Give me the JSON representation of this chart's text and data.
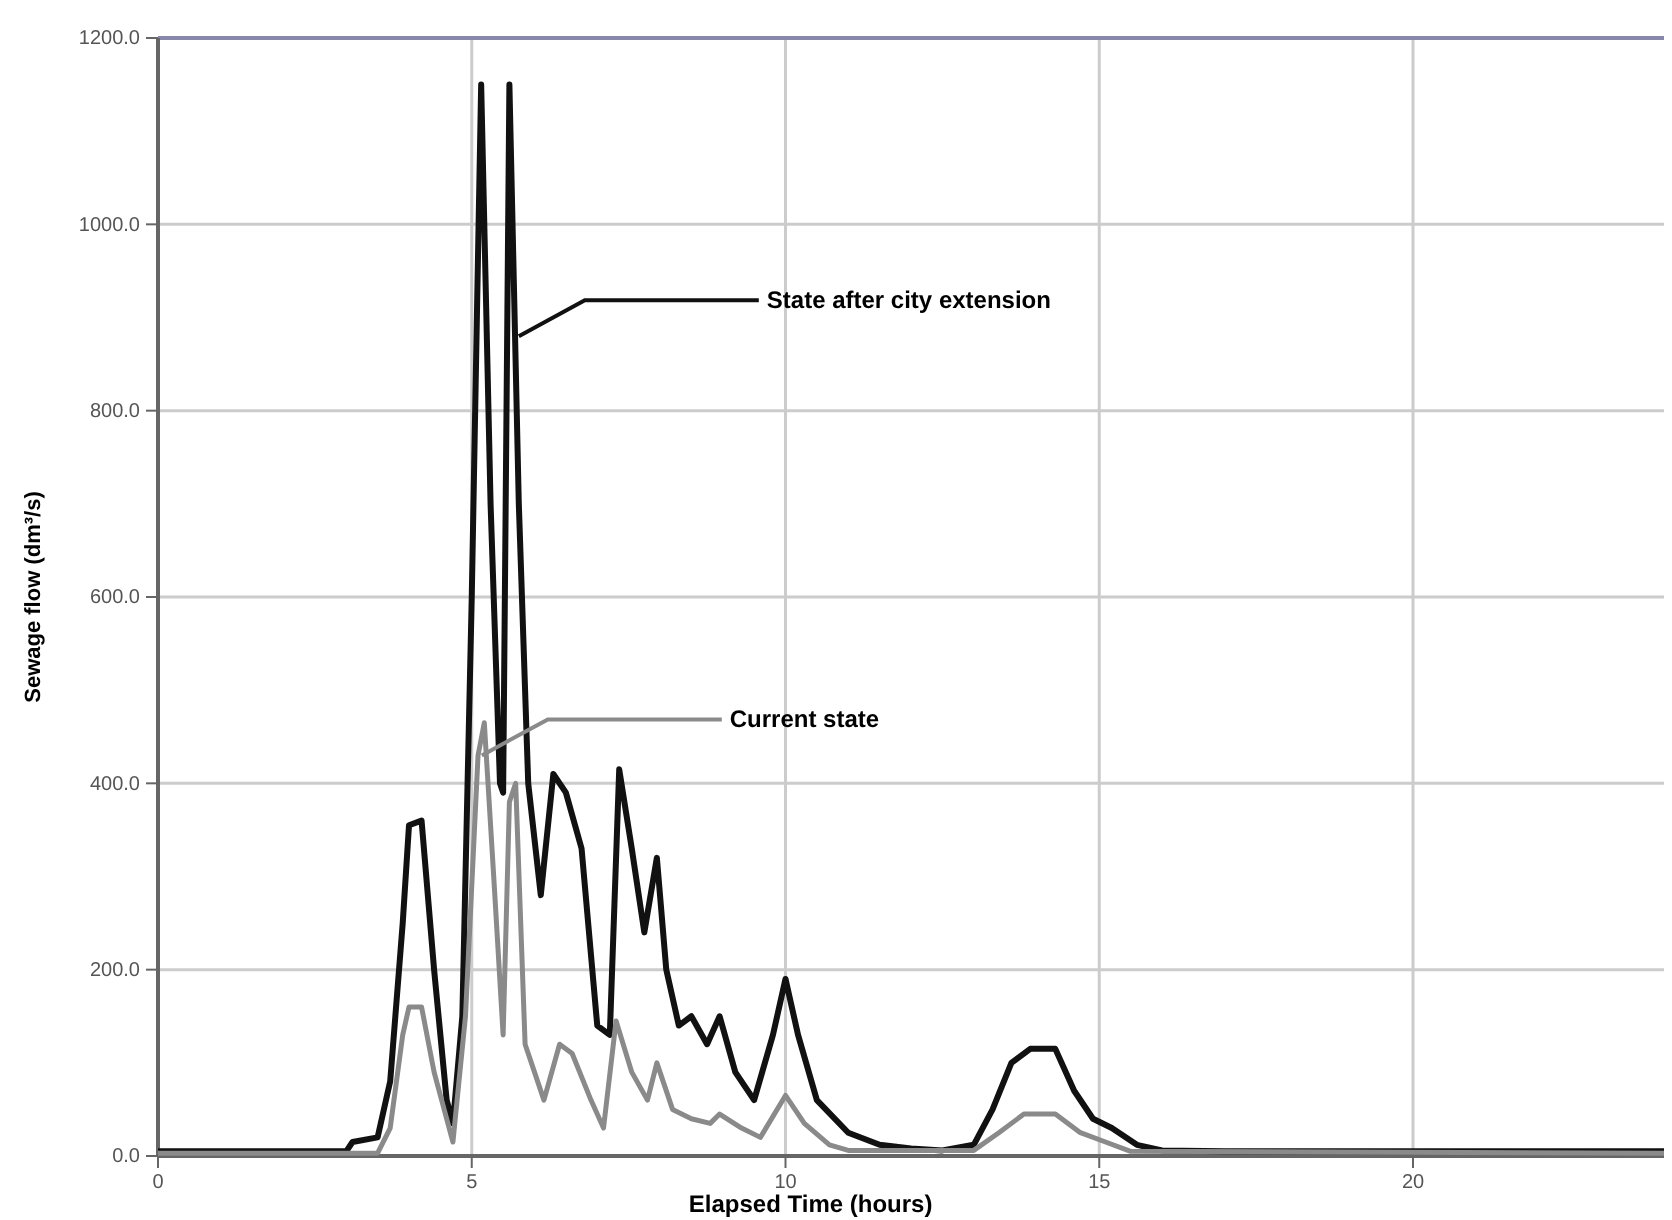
{
  "chart_data": {
    "type": "line",
    "xlabel": "Elapsed Time (hours)",
    "ylabel": "Sewage flow (dm³/s)",
    "xlim": [
      0,
      24
    ],
    "xticks": [
      0,
      5,
      10,
      15,
      20
    ],
    "ylim": [
      0,
      1200
    ],
    "yticks": [
      {
        "value": 0,
        "label": "0.0"
      },
      {
        "value": 200,
        "label": "200.0"
      },
      {
        "value": 400,
        "label": "400.0"
      },
      {
        "value": 600,
        "label": "600.0"
      },
      {
        "value": 800,
        "label": "800.0"
      },
      {
        "value": 1000,
        "label": "1000.0"
      },
      {
        "value": 1200,
        "label": "1200.0"
      }
    ],
    "grid": true,
    "marker": "none",
    "line_style": "solid",
    "series": [
      {
        "color": "#111111",
        "x": [
          0,
          3,
          3.1,
          3.5,
          3.7,
          3.9,
          4.0,
          4.2,
          4.4,
          4.6,
          4.7,
          4.85,
          5.0,
          5.15,
          5.3,
          5.45,
          5.5,
          5.6,
          5.75,
          5.9,
          6.1,
          6.3,
          6.5,
          6.75,
          7.0,
          7.2,
          7.35,
          7.55,
          7.75,
          7.95,
          8.1,
          8.3,
          8.5,
          8.75,
          8.95,
          9.2,
          9.5,
          9.8,
          10.0,
          10.2,
          10.5,
          11,
          11.5,
          12,
          12.5,
          13,
          13.3,
          13.6,
          13.9,
          14.3,
          14.6,
          14.9,
          15.2,
          15.6,
          16,
          17,
          24
        ],
        "values": [
          5,
          5,
          15,
          20,
          80,
          250,
          355,
          360,
          200,
          60,
          35,
          150,
          600,
          1150,
          700,
          400,
          390,
          1150,
          700,
          400,
          280,
          410,
          390,
          330,
          140,
          130,
          415,
          330,
          240,
          320,
          200,
          140,
          150,
          120,
          150,
          90,
          60,
          130,
          190,
          130,
          60,
          25,
          12,
          8,
          6,
          12,
          50,
          100,
          115,
          115,
          70,
          40,
          30,
          12,
          6,
          5,
          5
        ]
      },
      {
        "color": "#8a8a8a",
        "x": [
          0,
          3.5,
          3.7,
          3.9,
          4.0,
          4.2,
          4.4,
          4.7,
          4.9,
          5.1,
          5.2,
          5.35,
          5.5,
          5.6,
          5.7,
          5.85,
          6.0,
          6.15,
          6.4,
          6.6,
          6.9,
          7.1,
          7.3,
          7.55,
          7.8,
          7.95,
          8.2,
          8.5,
          8.8,
          8.95,
          9.3,
          9.6,
          10.0,
          10.3,
          10.7,
          11,
          13,
          13.4,
          13.8,
          14.3,
          14.7,
          15.1,
          15.5,
          24
        ],
        "values": [
          3,
          3,
          30,
          130,
          160,
          160,
          90,
          15,
          150,
          430,
          465,
          300,
          130,
          380,
          400,
          120,
          90,
          60,
          120,
          110,
          60,
          30,
          145,
          90,
          60,
          100,
          50,
          40,
          35,
          45,
          30,
          20,
          65,
          35,
          12,
          6,
          6,
          25,
          45,
          45,
          25,
          15,
          5,
          3
        ]
      }
    ],
    "annotations": [
      {
        "text": "State after city extension",
        "x": 5.75,
        "y": 880
      },
      {
        "text": "Current state",
        "x": 5.16,
        "y": 430
      }
    ]
  }
}
